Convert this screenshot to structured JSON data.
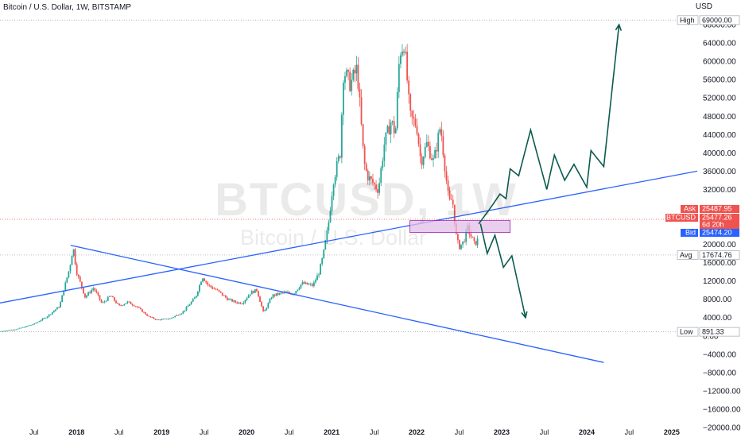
{
  "header": {
    "title": "Bitcoin / U.S. Dollar, 1W, BITSTAMP",
    "currency": "USD"
  },
  "watermark": {
    "symbol": "BTCUSD, 1W",
    "name": "Bitcoin / U.S. Dollar"
  },
  "colors": {
    "up": "#26a69a",
    "down": "#ef5350",
    "trendline": "#2962ff",
    "projection": "#0b5b4f",
    "zone": "#e1bee7",
    "zone_border": "#9c27b0"
  },
  "chart_data": {
    "type": "candlestick",
    "title": "Bitcoin / U.S. Dollar, 1W, BITSTAMP",
    "ylabel": "USD",
    "ylim": [
      -20000,
      72000
    ],
    "y_ticks": [
      "68000.00",
      "64000.00",
      "60000.00",
      "56000.00",
      "52000.00",
      "48000.00",
      "44000.00",
      "40000.00",
      "36000.00",
      "32000.00",
      "28000.00",
      "24000.00",
      "20000.00",
      "16000.00",
      "12000.00",
      "8000.00",
      "4000.00",
      "0.00",
      "−4000.00",
      "−8000.00",
      "−12000.00",
      "−16000.00",
      "−20000.00"
    ],
    "y_tick_values": [
      68000,
      64000,
      60000,
      56000,
      52000,
      48000,
      44000,
      40000,
      36000,
      32000,
      28000,
      24000,
      20000,
      16000,
      12000,
      8000,
      4000,
      0,
      -4000,
      -8000,
      -12000,
      -16000,
      -20000
    ],
    "x_ticks": [
      {
        "label": "Jul",
        "t": 2017.5,
        "bold": false
      },
      {
        "label": "2018",
        "t": 2018.0,
        "bold": true
      },
      {
        "label": "Jul",
        "t": 2018.5,
        "bold": false
      },
      {
        "label": "2019",
        "t": 2019.0,
        "bold": true
      },
      {
        "label": "Jul",
        "t": 2019.5,
        "bold": false
      },
      {
        "label": "2020",
        "t": 2020.0,
        "bold": true
      },
      {
        "label": "Jul",
        "t": 2020.5,
        "bold": false
      },
      {
        "label": "2021",
        "t": 2021.0,
        "bold": true
      },
      {
        "label": "Jul",
        "t": 2021.5,
        "bold": false
      },
      {
        "label": "2022",
        "t": 2022.0,
        "bold": true
      },
      {
        "label": "Jul",
        "t": 2022.5,
        "bold": false
      },
      {
        "label": "2023",
        "t": 2023.0,
        "bold": true
      },
      {
        "label": "Jul",
        "t": 2023.5,
        "bold": false
      },
      {
        "label": "2024",
        "t": 2024.0,
        "bold": true
      },
      {
        "label": "Jul",
        "t": 2024.5,
        "bold": false
      },
      {
        "label": "2025",
        "t": 2025.0,
        "bold": true
      }
    ],
    "xlim": [
      2017.1,
      2025.3
    ],
    "price_path": [
      [
        2017.1,
        1000
      ],
      [
        2017.3,
        1500
      ],
      [
        2017.5,
        2600
      ],
      [
        2017.65,
        4200
      ],
      [
        2017.8,
        6500
      ],
      [
        2017.92,
        15000
      ],
      [
        2017.96,
        19500
      ],
      [
        2018.0,
        14000
      ],
      [
        2018.1,
        8500
      ],
      [
        2018.2,
        10500
      ],
      [
        2018.3,
        7000
      ],
      [
        2018.4,
        8800
      ],
      [
        2018.5,
        6500
      ],
      [
        2018.6,
        7400
      ],
      [
        2018.7,
        6500
      ],
      [
        2018.85,
        4200
      ],
      [
        2018.95,
        3500
      ],
      [
        2019.1,
        3800
      ],
      [
        2019.25,
        5200
      ],
      [
        2019.4,
        8500
      ],
      [
        2019.48,
        13000
      ],
      [
        2019.55,
        11000
      ],
      [
        2019.65,
        10000
      ],
      [
        2019.78,
        8000
      ],
      [
        2019.88,
        7300
      ],
      [
        2019.95,
        7200
      ],
      [
        2020.05,
        9500
      ],
      [
        2020.12,
        10000
      ],
      [
        2020.2,
        5000
      ],
      [
        2020.3,
        8800
      ],
      [
        2020.45,
        9500
      ],
      [
        2020.55,
        9200
      ],
      [
        2020.65,
        11500
      ],
      [
        2020.78,
        11000
      ],
      [
        2020.85,
        13800
      ],
      [
        2020.9,
        17500
      ],
      [
        2020.96,
        24000
      ],
      [
        2021.02,
        34000
      ],
      [
        2021.1,
        40000
      ],
      [
        2021.14,
        58000
      ],
      [
        2021.22,
        55000
      ],
      [
        2021.3,
        58500
      ],
      [
        2021.38,
        38000
      ],
      [
        2021.42,
        35000
      ],
      [
        2021.5,
        33000
      ],
      [
        2021.55,
        32000
      ],
      [
        2021.62,
        42000
      ],
      [
        2021.7,
        47000
      ],
      [
        2021.75,
        44000
      ],
      [
        2021.8,
        62000
      ],
      [
        2021.85,
        64000
      ],
      [
        2021.88,
        58000
      ],
      [
        2021.92,
        48000
      ],
      [
        2022.0,
        46000
      ],
      [
        2022.05,
        38000
      ],
      [
        2022.12,
        42000
      ],
      [
        2022.2,
        38000
      ],
      [
        2022.28,
        46000
      ],
      [
        2022.32,
        39000
      ],
      [
        2022.38,
        29000
      ],
      [
        2022.42,
        30000
      ],
      [
        2022.47,
        21000
      ],
      [
        2022.5,
        19500
      ],
      [
        2022.55,
        20500
      ],
      [
        2022.6,
        23500
      ],
      [
        2022.68,
        20000
      ],
      [
        2022.72,
        21000
      ]
    ],
    "trendlines": [
      {
        "points": [
          [
            2017.1,
            7200
          ],
          [
            2025.3,
            36000
          ]
        ]
      },
      {
        "points": [
          [
            2017.93,
            19800
          ],
          [
            2024.2,
            -5800
          ]
        ]
      }
    ],
    "projection_up": [
      [
        2022.73,
        24500
      ],
      [
        2022.85,
        27500
      ],
      [
        2022.98,
        31000
      ],
      [
        2023.05,
        30000
      ],
      [
        2023.1,
        36500
      ],
      [
        2023.2,
        35000
      ],
      [
        2023.34,
        45000
      ],
      [
        2023.53,
        32000
      ],
      [
        2023.62,
        39500
      ],
      [
        2023.74,
        34000
      ],
      [
        2023.85,
        37500
      ],
      [
        2024.0,
        32500
      ],
      [
        2024.05,
        40500
      ],
      [
        2024.2,
        37000
      ],
      [
        2024.38,
        68000
      ]
    ],
    "projection_down": [
      [
        2022.75,
        24500
      ],
      [
        2022.83,
        18000
      ],
      [
        2022.92,
        22000
      ],
      [
        2023.02,
        15000
      ],
      [
        2023.12,
        17500
      ],
      [
        2023.28,
        4000
      ]
    ],
    "zone": {
      "from_t": 2021.92,
      "to_t": 2023.1,
      "low": 22600,
      "high": 25200
    },
    "price_labels": {
      "high": {
        "label": "High",
        "value": "69000.00",
        "v": 69000
      },
      "ask": {
        "label": "Ask",
        "value": "25487.95",
        "v": 25487.95
      },
      "last": {
        "label": "BTCUSD",
        "value": "25477.26",
        "v": 25477.26,
        "countdown": "6d 20h"
      },
      "bid": {
        "label": "Bid",
        "value": "25474.20",
        "v": 25474.2
      },
      "avg": {
        "label": "Avg",
        "value": "17674.76",
        "v": 17674.76
      },
      "low": {
        "label": "Low",
        "value": "891.33",
        "v": 891.33
      }
    }
  }
}
